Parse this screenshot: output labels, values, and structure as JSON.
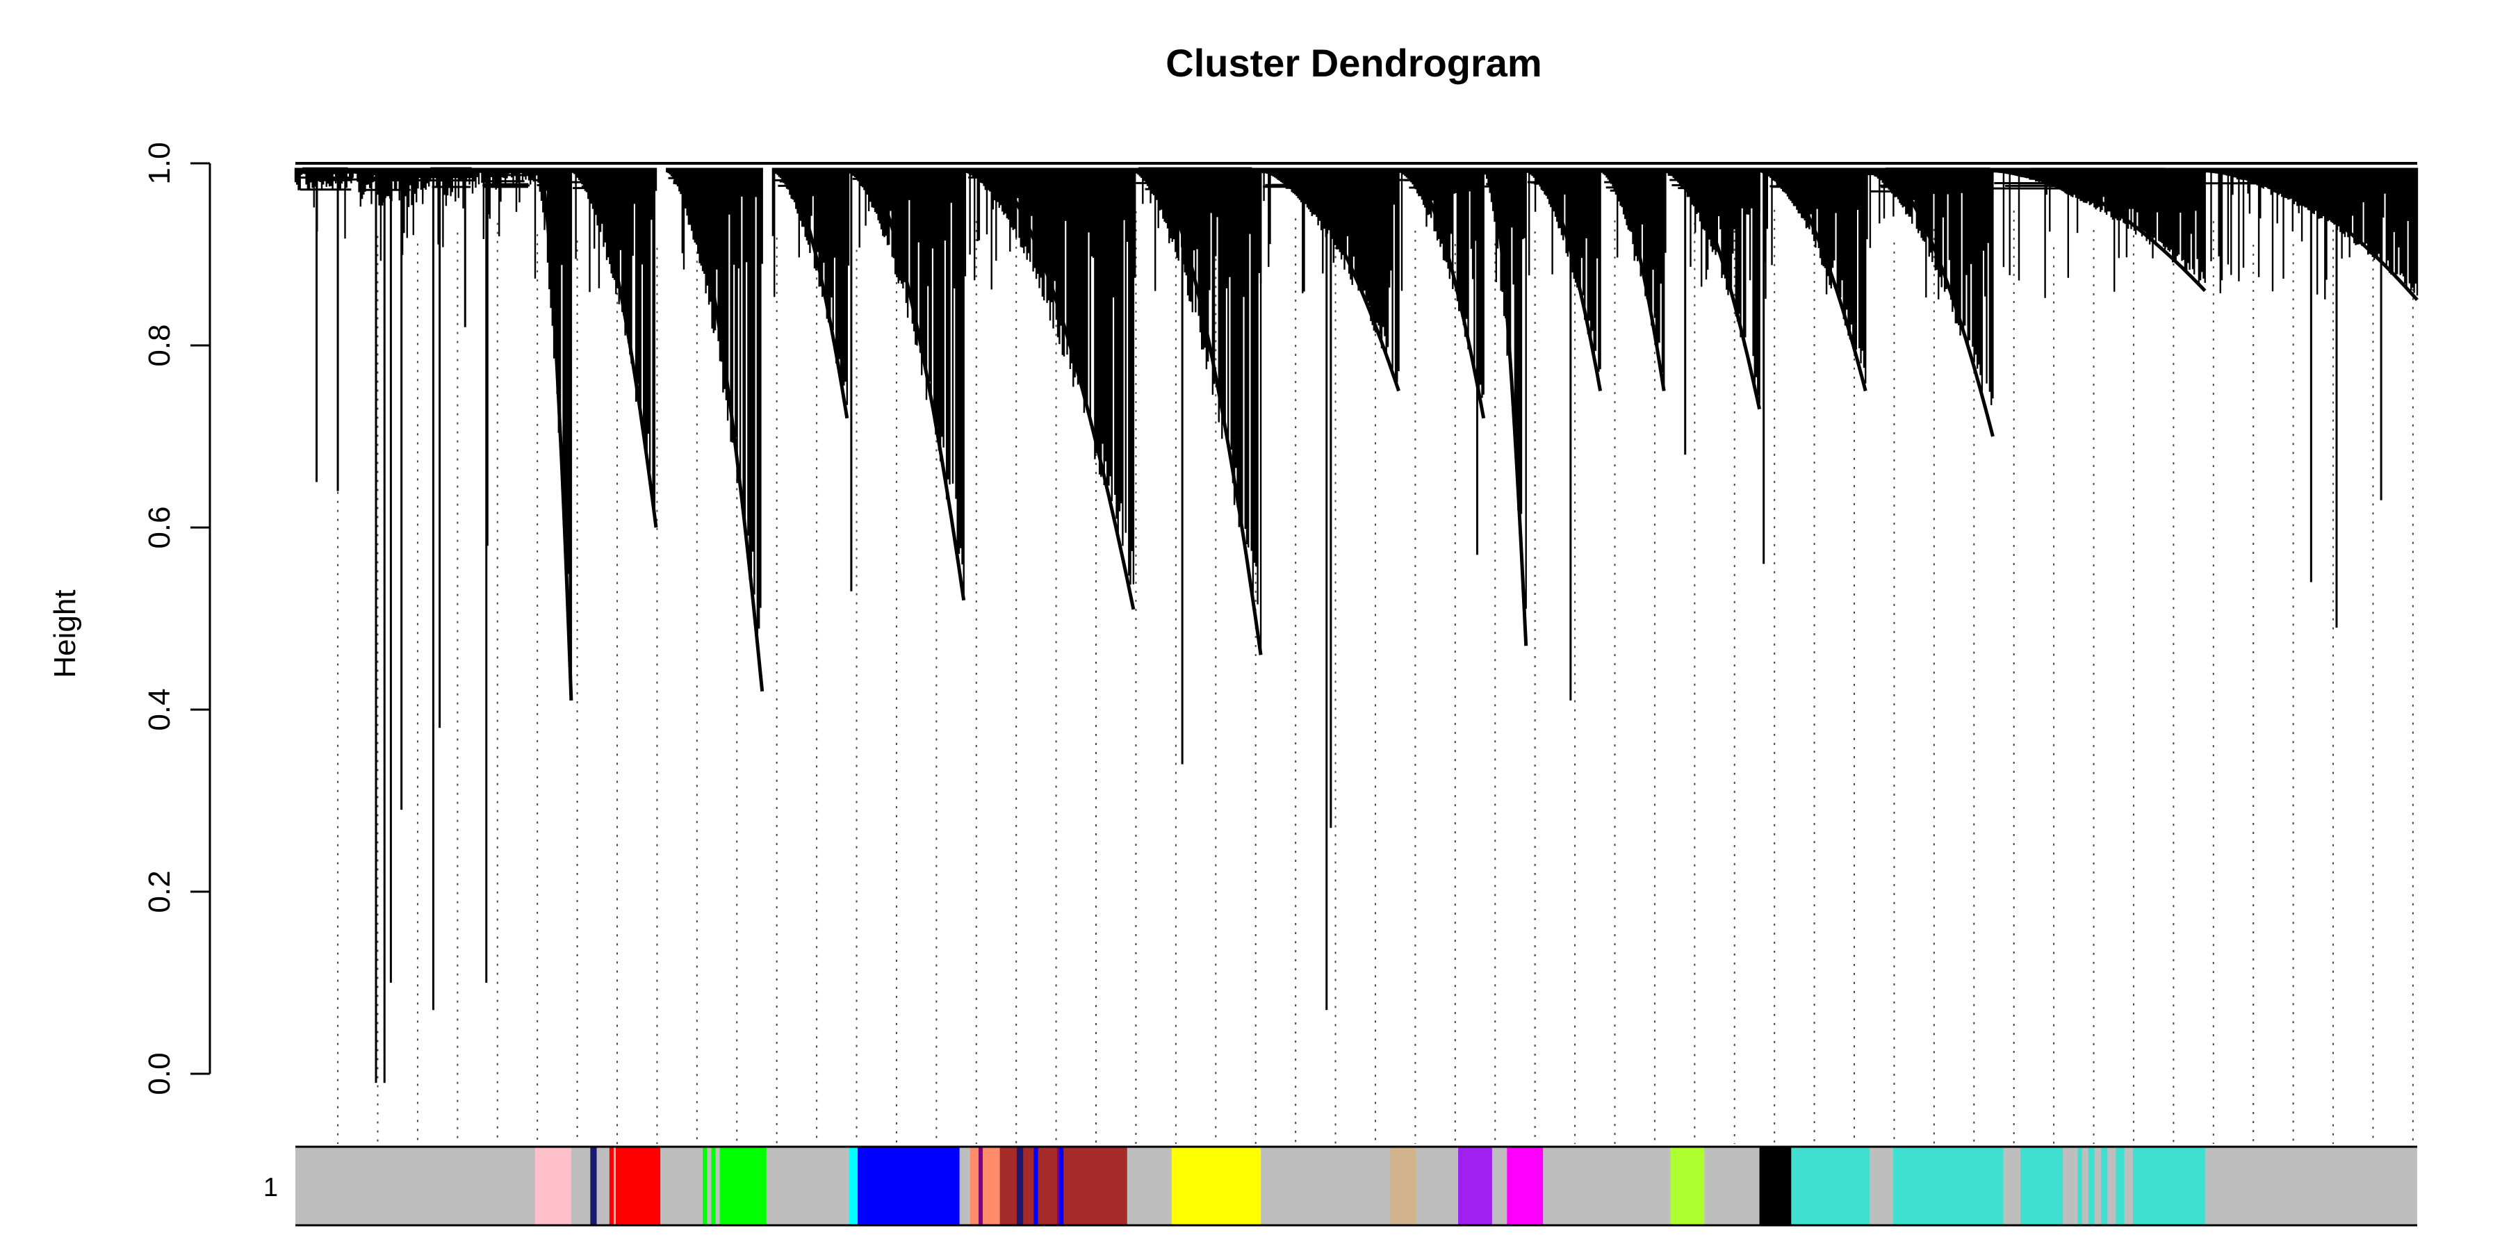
{
  "chart_data": {
    "type": "dendrogram",
    "title": "Cluster Dendrogram",
    "xlabel": "",
    "ylabel": "Height",
    "ylim": [
      0,
      1
    ],
    "y_ticks": [
      {
        "value": 0.0,
        "label": "0.0"
      },
      {
        "value": 0.2,
        "label": "0.2"
      },
      {
        "value": 0.4,
        "label": "0.4"
      },
      {
        "value": 0.6,
        "label": "0.6"
      },
      {
        "value": 0.8,
        "label": "0.8"
      },
      {
        "value": 1.0,
        "label": "1.0"
      }
    ],
    "root_height": 1.0,
    "clusters": [
      {
        "x": [
          0.0,
          0.03
        ],
        "min_height": 0.97,
        "color_module": "grey"
      },
      {
        "x": [
          0.03,
          0.06
        ],
        "min_height": 0.95,
        "color_module": "grey"
      },
      {
        "x": [
          0.06,
          0.085
        ],
        "min_height": 0.96,
        "color_module": "grey"
      },
      {
        "x": [
          0.085,
          0.113
        ],
        "min_height": 0.97,
        "color_module": "grey"
      },
      {
        "x": [
          0.113,
          0.13
        ],
        "min_height": 0.41,
        "color_module": "pink"
      },
      {
        "x": [
          0.13,
          0.17
        ],
        "min_height": 0.6,
        "color_module": "red"
      },
      {
        "x": [
          0.175,
          0.22
        ],
        "min_height": 0.42,
        "color_module": "green"
      },
      {
        "x": [
          0.225,
          0.26
        ],
        "min_height": 0.72,
        "color_module": "grey"
      },
      {
        "x": [
          0.26,
          0.315
        ],
        "min_height": 0.52,
        "color_module": "blue"
      },
      {
        "x": [
          0.315,
          0.395
        ],
        "min_height": 0.51,
        "color_module": "brown"
      },
      {
        "x": [
          0.395,
          0.455
        ],
        "min_height": 0.46,
        "color_module": "yellow"
      },
      {
        "x": [
          0.455,
          0.52
        ],
        "min_height": 0.75,
        "color_module": "grey"
      },
      {
        "x": [
          0.52,
          0.56
        ],
        "min_height": 0.72,
        "color_module": "grey"
      },
      {
        "x": [
          0.56,
          0.58
        ],
        "min_height": 0.47,
        "color_module": "purple"
      },
      {
        "x": [
          0.58,
          0.615
        ],
        "min_height": 0.75,
        "color_module": "magenta"
      },
      {
        "x": [
          0.615,
          0.645
        ],
        "min_height": 0.75,
        "color_module": "grey"
      },
      {
        "x": [
          0.645,
          0.69
        ],
        "min_height": 0.73,
        "color_module": "greenyellow"
      },
      {
        "x": [
          0.69,
          0.74
        ],
        "min_height": 0.75,
        "color_module": "black"
      },
      {
        "x": [
          0.74,
          0.8
        ],
        "min_height": 0.7,
        "color_module": "turquoise"
      },
      {
        "x": [
          0.8,
          0.9
        ],
        "min_height": 0.86,
        "color_module": "turquoise"
      },
      {
        "x": [
          0.9,
          1.0
        ],
        "min_height": 0.85,
        "color_module": "grey"
      }
    ],
    "long_leaves": [
      {
        "x": 0.01,
        "height": 0.65
      },
      {
        "x": 0.02,
        "height": 0.64
      },
      {
        "x": 0.038,
        "height": -0.01
      },
      {
        "x": 0.042,
        "height": -0.01
      },
      {
        "x": 0.045,
        "height": 0.1
      },
      {
        "x": 0.05,
        "height": 0.29
      },
      {
        "x": 0.065,
        "height": 0.07
      },
      {
        "x": 0.068,
        "height": 0.38
      },
      {
        "x": 0.08,
        "height": 0.82
      },
      {
        "x": 0.09,
        "height": 0.1
      },
      {
        "x": 0.0905,
        "height": 0.58
      },
      {
        "x": 0.262,
        "height": 0.53
      },
      {
        "x": 0.418,
        "height": 0.34
      },
      {
        "x": 0.486,
        "height": 0.07
      },
      {
        "x": 0.488,
        "height": 0.27
      },
      {
        "x": 0.557,
        "height": 0.57
      },
      {
        "x": 0.601,
        "height": 0.41
      },
      {
        "x": 0.655,
        "height": 0.68
      },
      {
        "x": 0.692,
        "height": 0.56
      },
      {
        "x": 0.95,
        "height": 0.54
      },
      {
        "x": 0.962,
        "height": 0.49
      },
      {
        "x": 0.983,
        "height": 0.63
      }
    ],
    "color_track": {
      "label": "1",
      "background": "#bebebe",
      "segments": [
        {
          "start": 0.113,
          "end": 0.13,
          "color": "#ffc0cb",
          "module": "pink"
        },
        {
          "start": 0.139,
          "end": 0.142,
          "color": "#191970",
          "module": "midnightblue"
        },
        {
          "start": 0.148,
          "end": 0.15,
          "color": "#ff0000",
          "module": "red"
        },
        {
          "start": 0.151,
          "end": 0.172,
          "color": "#ff0000",
          "module": "red"
        },
        {
          "start": 0.192,
          "end": 0.194,
          "color": "#00ff00",
          "module": "green"
        },
        {
          "start": 0.196,
          "end": 0.198,
          "color": "#00ff00",
          "module": "green"
        },
        {
          "start": 0.2,
          "end": 0.222,
          "color": "#00ff00",
          "module": "green"
        },
        {
          "start": 0.261,
          "end": 0.265,
          "color": "#00ffff",
          "module": "cyan"
        },
        {
          "start": 0.265,
          "end": 0.313,
          "color": "#0000ff",
          "module": "blue"
        },
        {
          "start": 0.318,
          "end": 0.322,
          "color": "#ff8c69",
          "module": "salmon"
        },
        {
          "start": 0.322,
          "end": 0.324,
          "color": "#800080",
          "module": "purple"
        },
        {
          "start": 0.324,
          "end": 0.332,
          "color": "#ff8c69",
          "module": "salmon"
        },
        {
          "start": 0.332,
          "end": 0.392,
          "color": "#a52a2a",
          "module": "brown"
        },
        {
          "start": 0.34,
          "end": 0.343,
          "color": "#191970",
          "module": "midnightblue"
        },
        {
          "start": 0.348,
          "end": 0.35,
          "color": "#0000ff",
          "module": "blue"
        },
        {
          "start": 0.36,
          "end": 0.362,
          "color": "#0000ff",
          "module": "blue"
        },
        {
          "start": 0.359,
          "end": 0.36,
          "color": "#800080",
          "module": "purple"
        },
        {
          "start": 0.413,
          "end": 0.455,
          "color": "#ffff00",
          "module": "yellow"
        },
        {
          "start": 0.516,
          "end": 0.528,
          "color": "#d2b48c",
          "module": "tan"
        },
        {
          "start": 0.548,
          "end": 0.564,
          "color": "#a020f0",
          "module": "purple"
        },
        {
          "start": 0.571,
          "end": 0.588,
          "color": "#ff00ff",
          "module": "magenta"
        },
        {
          "start": 0.648,
          "end": 0.664,
          "color": "#adff2f",
          "module": "greenyellow"
        },
        {
          "start": 0.69,
          "end": 0.705,
          "color": "#000000",
          "module": "black"
        },
        {
          "start": 0.705,
          "end": 0.742,
          "color": "#40e0d0",
          "module": "turquoise"
        },
        {
          "start": 0.753,
          "end": 0.805,
          "color": "#40e0d0",
          "module": "turquoise"
        },
        {
          "start": 0.813,
          "end": 0.833,
          "color": "#40e0d0",
          "module": "turquoise"
        },
        {
          "start": 0.84,
          "end": 0.842,
          "color": "#40e0d0",
          "module": "turquoise"
        },
        {
          "start": 0.845,
          "end": 0.848,
          "color": "#40e0d0",
          "module": "turquoise"
        },
        {
          "start": 0.851,
          "end": 0.854,
          "color": "#40e0d0",
          "module": "turquoise"
        },
        {
          "start": 0.858,
          "end": 0.862,
          "color": "#40e0d0",
          "module": "turquoise"
        },
        {
          "start": 0.866,
          "end": 0.9,
          "color": "#40e0d0",
          "module": "turquoise"
        }
      ]
    },
    "guide_line_count": 52
  }
}
